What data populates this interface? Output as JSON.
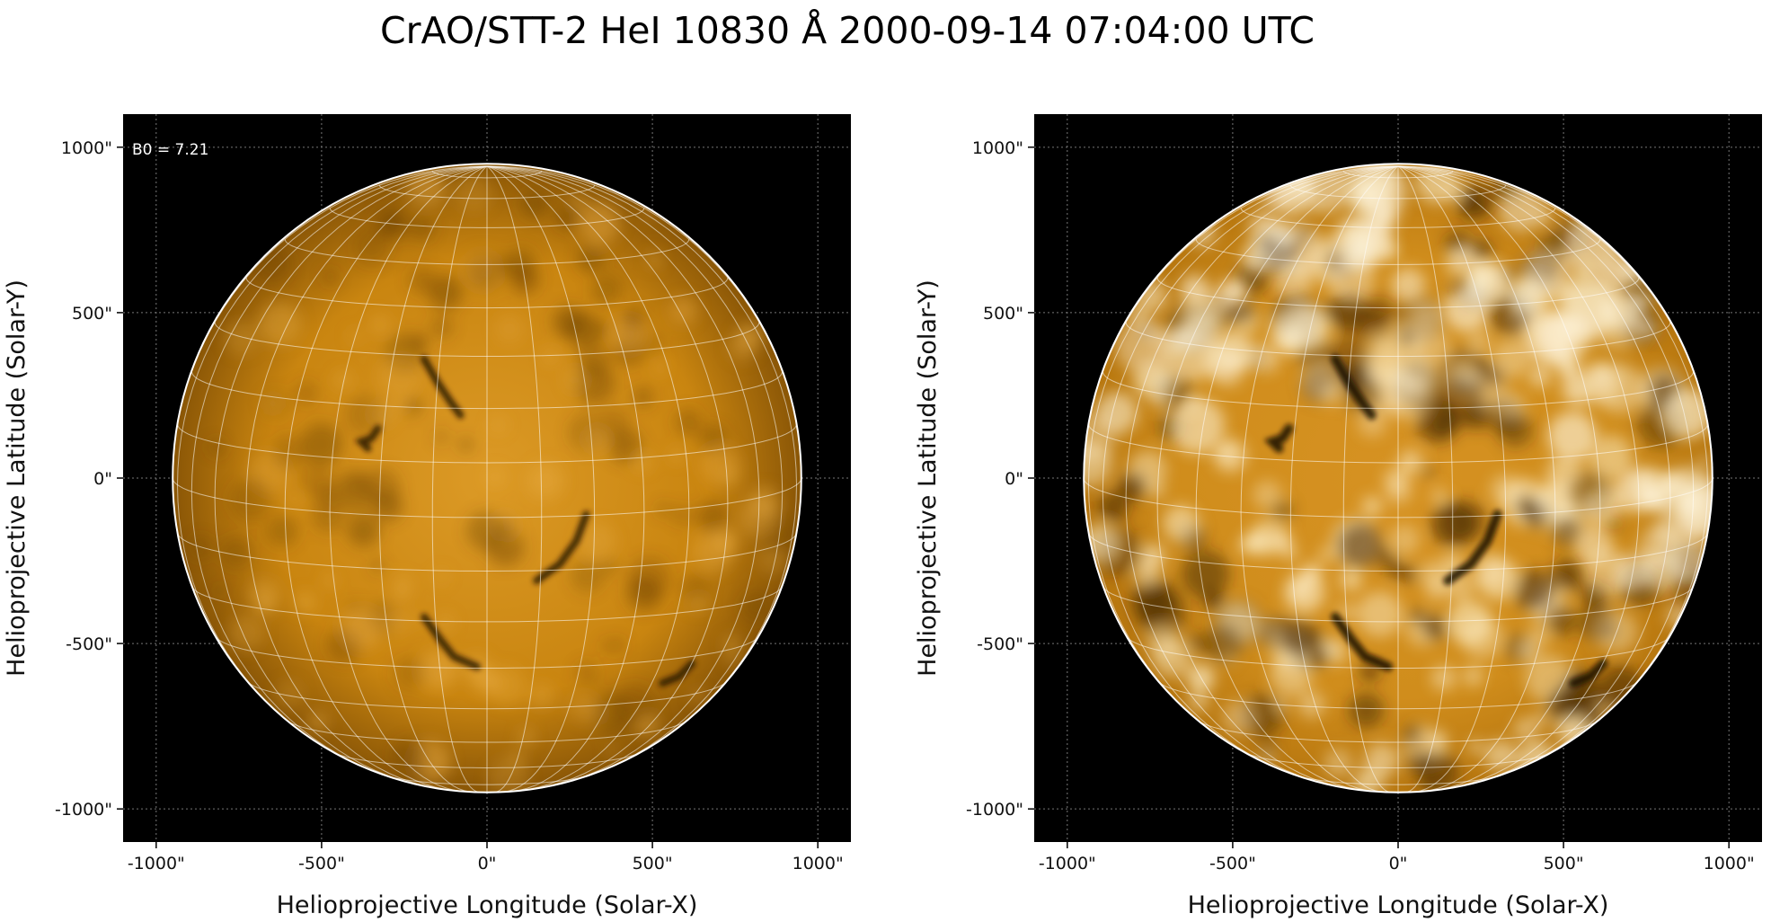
{
  "figure": {
    "title": "CrAO/STT-2 HeI 10830 Å 2000-09-14 07:04:00 UTC"
  },
  "panels": [
    {
      "name": "left",
      "annotation": "B0 = 7.21",
      "xlabel": "Helioprojective Longitude (Solar-X)",
      "ylabel": "Helioprojective Latitude (Solar-Y)",
      "contrast": "normal"
    },
    {
      "name": "right",
      "annotation": "",
      "xlabel": "Helioprojective Longitude (Solar-X)",
      "ylabel": "Helioprojective Latitude (Solar-Y)",
      "contrast": "enhanced"
    }
  ],
  "axes": {
    "x_ticks": [
      "-1000\"",
      "-500\"",
      "0\"",
      "500\"",
      "1000\""
    ],
    "y_ticks": [
      "1000\"",
      "500\"",
      "0\"",
      "-500\"",
      "-1000\""
    ],
    "x_tick_values": [
      -1000,
      -500,
      0,
      500,
      1000
    ],
    "y_tick_values": [
      1000,
      500,
      0,
      -500,
      -1000
    ],
    "range_arcsec": [
      -1100,
      1100
    ],
    "solar_radius_arcsec": 950,
    "grid": true
  },
  "colors": {
    "background": "#000000",
    "disk_base": "#c9820a",
    "disk_light": "#e6a838",
    "disk_dark": "#5a3503",
    "grid_line": "#ffffff",
    "limb": "#ffffff"
  }
}
